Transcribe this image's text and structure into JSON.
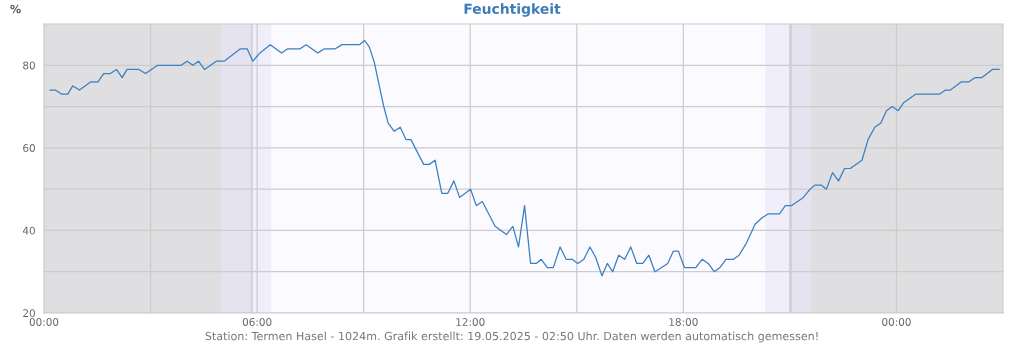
{
  "chart_data": {
    "type": "line",
    "title": "Feuchtigkeit",
    "ylabel": "%",
    "annotations": [
      "Station: Termen Hasel - 1024m. Grafik erstellt: 19.05.2025 - 02:50 Uhr. Daten werden automatisch gemessen!"
    ],
    "series": [
      {
        "color": "#3a7fc0",
        "x": [
          0.17,
          0.32,
          0.5,
          0.67,
          0.81,
          1.0,
          1.32,
          1.52,
          1.68,
          1.87,
          2.04,
          2.2,
          2.34,
          2.67,
          2.86,
          3.2,
          3.86,
          4.03,
          4.19,
          4.35,
          4.52,
          4.85,
          5.07,
          5.53,
          5.72,
          5.88,
          6.08,
          6.37,
          6.69,
          6.86,
          7.21,
          7.38,
          7.71,
          7.9,
          8.2,
          8.39,
          8.88,
          9.03,
          9.16,
          9.3,
          9.44,
          9.56,
          9.69,
          9.86,
          10.03,
          10.19,
          10.33,
          10.69,
          10.85,
          11.01,
          11.2,
          11.37,
          11.54,
          11.7,
          12.01,
          12.17,
          12.34,
          12.7,
          13.02,
          13.2,
          13.36,
          13.53,
          13.7,
          13.86,
          14.0,
          14.17,
          14.34,
          14.53,
          14.7,
          14.87,
          15.03,
          15.2,
          15.37,
          15.53,
          15.71,
          15.86,
          16.01,
          16.18,
          16.35,
          16.52,
          16.69,
          16.86,
          17.03,
          17.2,
          17.39,
          17.56,
          17.72,
          17.86,
          18.03,
          18.35,
          18.53,
          18.7,
          18.87,
          19.03,
          19.2,
          19.41,
          19.57,
          19.78,
          20.02,
          20.21,
          20.38,
          20.71,
          20.87,
          21.04,
          21.38,
          21.57,
          21.71,
          21.88,
          22.03,
          22.2,
          22.37,
          22.54,
          22.7,
          23.03,
          23.2,
          23.39,
          23.56,
          23.72,
          23.88,
          24.05,
          24.21,
          24.54,
          25.21,
          25.38,
          25.52,
          25.83,
          26.04,
          26.21,
          26.4,
          26.7,
          26.89
        ],
        "values": [
          74,
          74,
          73,
          73,
          75,
          74,
          76,
          76,
          78,
          78,
          79,
          77,
          79,
          79,
          78,
          80,
          80,
          81,
          80,
          81,
          79,
          81,
          81,
          84,
          84,
          81,
          83,
          85,
          83,
          84,
          84,
          85,
          83,
          84,
          84,
          85,
          85,
          86,
          84.4,
          80.7,
          75,
          70.2,
          66,
          64,
          65,
          62,
          62,
          56,
          56,
          57,
          49,
          49,
          52,
          48,
          50,
          46,
          47,
          41,
          39,
          41,
          36,
          46,
          32,
          32,
          33,
          31,
          31,
          36,
          33,
          33,
          32,
          33,
          36,
          33.5,
          29,
          32,
          30,
          34,
          33,
          36,
          32,
          32,
          34,
          30,
          31,
          32,
          35,
          35,
          31,
          31,
          33,
          32,
          30,
          31,
          33,
          33,
          34,
          37,
          41.5,
          43,
          44,
          44,
          46,
          46,
          48,
          50,
          51,
          51,
          50,
          54,
          52,
          55,
          55,
          57,
          62,
          65,
          66,
          69,
          70,
          69,
          71,
          73,
          73,
          74,
          74,
          76,
          76,
          77,
          77,
          79,
          79
        ]
      }
    ],
    "xlim": [
      0,
      27
    ],
    "xticks": [
      {
        "value": 0,
        "label": "00:00"
      },
      {
        "value": 3,
        "label": null
      },
      {
        "value": 6,
        "label": "06:00"
      },
      {
        "value": 9,
        "label": null
      },
      {
        "value": 12,
        "label": "12:00"
      },
      {
        "value": 15,
        "label": null
      },
      {
        "value": 18,
        "label": "18:00"
      },
      {
        "value": 21,
        "label": null
      },
      {
        "value": 24,
        "label": "00:00"
      }
    ],
    "ylim": [
      20,
      90
    ],
    "yticks": [
      20,
      {
        "value": 30,
        "label": null
      },
      40,
      {
        "value": 50,
        "label": null
      },
      60,
      {
        "value": 70,
        "label": null
      },
      80
    ],
    "bands": [
      {
        "axis": "x",
        "from": 0,
        "to": 5.85,
        "color": "#dfdfe1"
      },
      {
        "axis": "x",
        "from": 21.03,
        "to": 27,
        "color": "#dfdfe1"
      },
      {
        "axis": "x",
        "from": 5.0,
        "to": 5.85,
        "color": "#e6e3f1"
      },
      {
        "axis": "x",
        "from": 5.85,
        "to": 6.4,
        "color": "#f1eefb"
      },
      {
        "axis": "x",
        "from": 20.3,
        "to": 21.03,
        "color": "#f1eefb"
      },
      {
        "axis": "x",
        "from": 21.03,
        "to": 21.6,
        "color": "#e6e3f1"
      }
    ],
    "ref_lines": [
      {
        "axis": "x",
        "value": 5.85,
        "color": "#cfcfd6"
      },
      {
        "axis": "x",
        "value": 21.03,
        "color": "#cfcfd6"
      }
    ],
    "grid": true,
    "marker": "none",
    "line_style": "solid"
  }
}
